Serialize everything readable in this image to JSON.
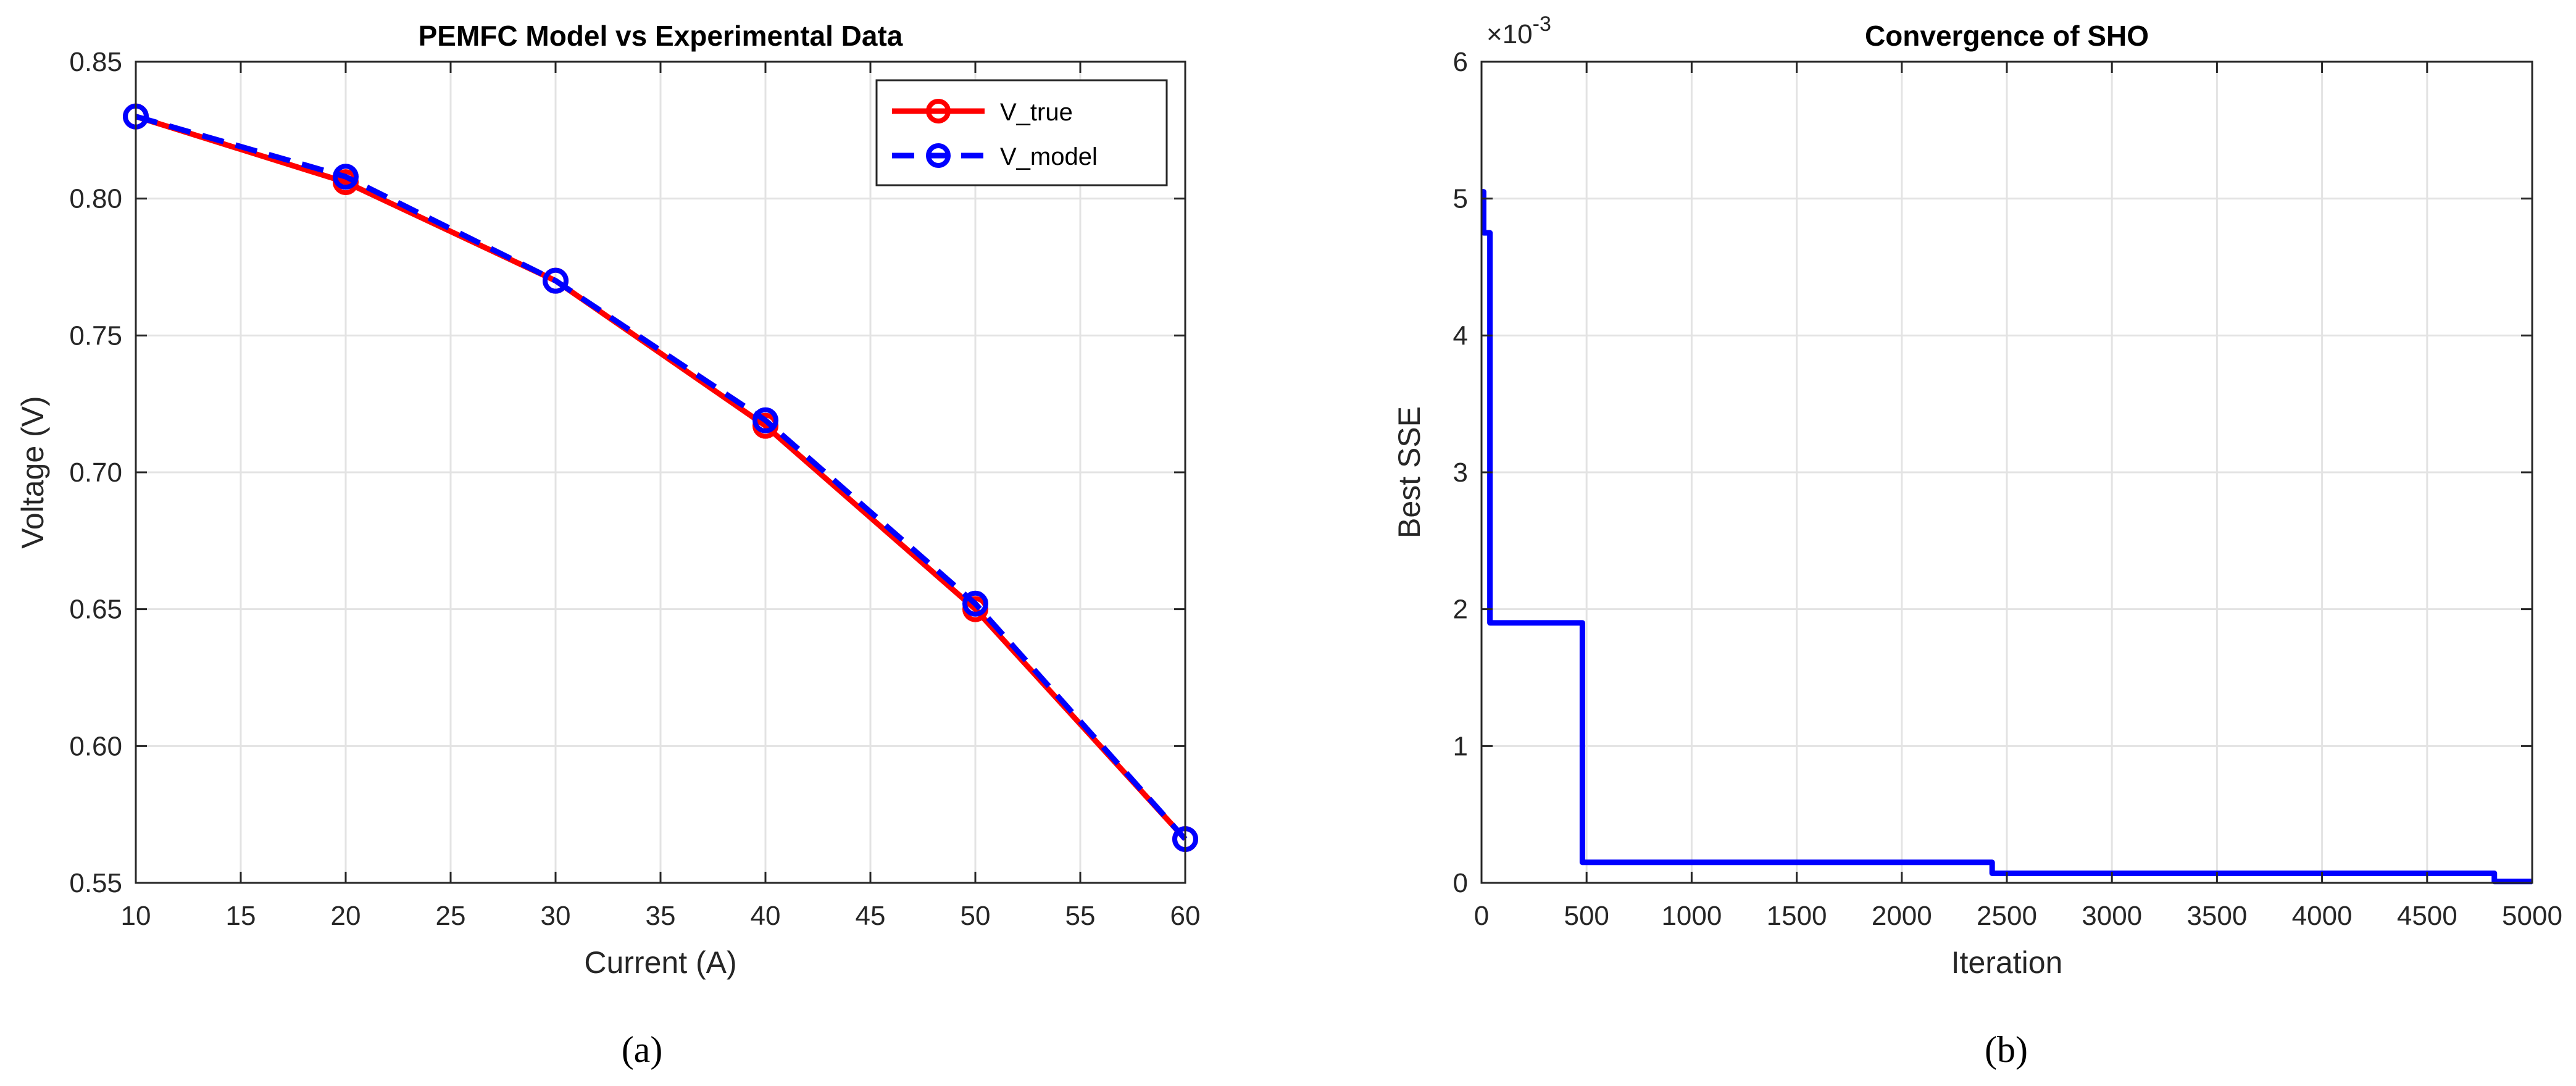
{
  "chart_data": [
    {
      "type": "line",
      "title": "PEMFC Model vs Experimental Data",
      "xlabel": "Current (A)",
      "ylabel": "Voltage (V)",
      "xlim": [
        10,
        60
      ],
      "ylim": [
        0.55,
        0.85
      ],
      "xticks": [
        10,
        15,
        20,
        25,
        30,
        35,
        40,
        45,
        50,
        55,
        60
      ],
      "yticks": [
        0.55,
        0.6,
        0.65,
        0.7,
        0.75,
        0.8,
        0.85
      ],
      "grid": true,
      "legend": "top-right",
      "x": [
        10,
        20,
        30,
        40,
        50,
        60
      ],
      "series": [
        {
          "name": "V_true",
          "color": "#ff0000",
          "style": "solid",
          "marker": "circle",
          "values": [
            0.83,
            0.806,
            0.77,
            0.717,
            0.65,
            0.566
          ]
        },
        {
          "name": "V_model",
          "color": "#0000ff",
          "style": "dashed",
          "marker": "circle",
          "values": [
            0.83,
            0.808,
            0.77,
            0.719,
            0.652,
            0.566
          ]
        }
      ],
      "caption": "(a)"
    },
    {
      "type": "line",
      "title": "Convergence of SHO",
      "xlabel": "Iteration",
      "ylabel": "Best SSE",
      "exponent_label": "×10",
      "exponent_power": "-3",
      "xlim": [
        0,
        5000
      ],
      "ylim": [
        0,
        6
      ],
      "xticks": [
        0,
        500,
        1000,
        1500,
        2000,
        2500,
        3000,
        3500,
        4000,
        4500,
        5000
      ],
      "yticks": [
        0,
        1,
        2,
        3,
        4,
        5,
        6
      ],
      "grid": true,
      "series": [
        {
          "color": "#0000ff",
          "style": "solid",
          "x": [
            0,
            10,
            10,
            40,
            40,
            480,
            480,
            2430,
            2430,
            4820,
            4820,
            5000
          ],
          "values": [
            5.05,
            5.05,
            4.75,
            4.75,
            1.9,
            1.9,
            0.15,
            0.15,
            0.07,
            0.07,
            0.01,
            0.01
          ]
        }
      ],
      "caption": "(b)"
    }
  ]
}
